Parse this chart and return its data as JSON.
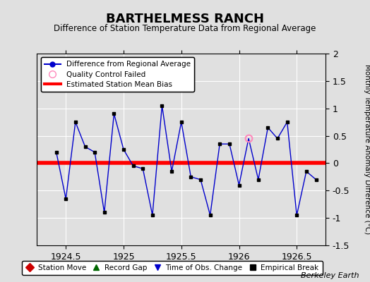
{
  "title": "BARTHELMESS RANCH",
  "subtitle": "Difference of Station Temperature Data from Regional Average",
  "ylabel": "Monthly Temperature Anomaly Difference (°C)",
  "watermark": "Berkeley Earth",
  "xlim": [
    1924.25,
    1926.75
  ],
  "ylim": [
    -1.5,
    2.0
  ],
  "yticks": [
    -1.5,
    -1.0,
    -0.5,
    0.0,
    0.5,
    1.0,
    1.5,
    2.0
  ],
  "ytick_labels": [
    "-1.5",
    "-1",
    "-0.5",
    "0",
    "0.5",
    "1",
    "1.5",
    "2"
  ],
  "xticks": [
    1924.5,
    1925.0,
    1925.5,
    1926.0,
    1926.5
  ],
  "xtick_labels": [
    "1924.5",
    "1925",
    "1925.5",
    "1926",
    "1926.5"
  ],
  "bias": 0.0,
  "bias_color": "#ff0000",
  "line_color": "#0000cc",
  "marker_color": "#000000",
  "qc_fail_color": "#ff88bb",
  "background_color": "#e0e0e0",
  "plot_bg_color": "#e0e0e0",
  "x_data": [
    1924.417,
    1924.5,
    1924.583,
    1924.667,
    1924.75,
    1924.833,
    1924.917,
    1925.0,
    1925.083,
    1925.167,
    1925.25,
    1925.333,
    1925.417,
    1925.5,
    1925.583,
    1925.667,
    1925.75,
    1925.833,
    1925.917,
    1926.0,
    1926.083,
    1926.167,
    1926.25,
    1926.333,
    1926.417,
    1926.5,
    1926.583,
    1926.667
  ],
  "y_data": [
    0.2,
    -0.65,
    0.75,
    0.3,
    0.2,
    -0.9,
    0.9,
    0.25,
    -0.05,
    -0.1,
    -0.95,
    1.05,
    -0.15,
    0.75,
    -0.25,
    -0.3,
    -0.95,
    0.35,
    0.35,
    -0.4,
    0.45,
    -0.3,
    0.65,
    0.45,
    0.75,
    -0.95,
    -0.15,
    -0.3
  ],
  "qc_fail_indices": [
    20
  ],
  "legend_line_label": "Difference from Regional Average",
  "legend_qc_label": "Quality Control Failed",
  "legend_bias_label": "Estimated Station Mean Bias",
  "legend2_items": [
    {
      "label": "Station Move",
      "color": "#cc0000",
      "marker": "D"
    },
    {
      "label": "Record Gap",
      "color": "#006600",
      "marker": "^"
    },
    {
      "label": "Time of Obs. Change",
      "color": "#0000cc",
      "marker": "v"
    },
    {
      "label": "Empirical Break",
      "color": "#000000",
      "marker": "s"
    }
  ]
}
